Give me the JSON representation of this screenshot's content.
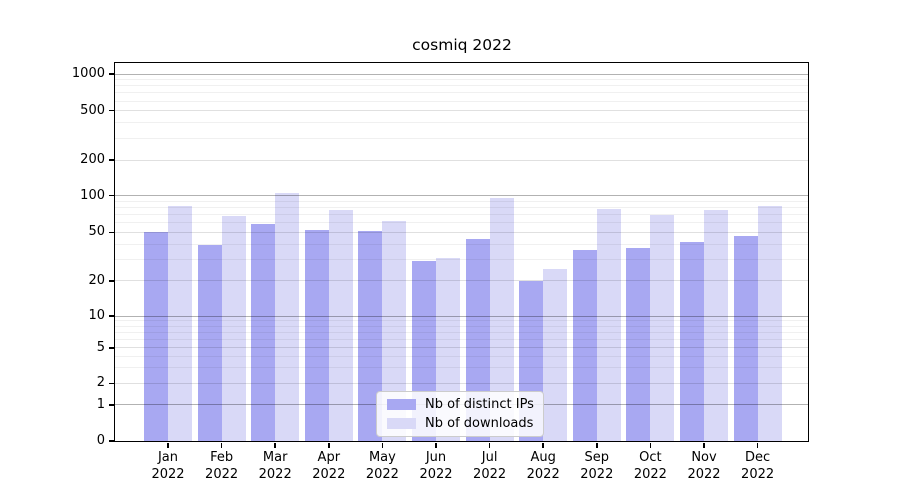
{
  "title": "cosmiq 2022",
  "colors": {
    "bar_ips": "#a8a8f2",
    "bar_downloads": "#d9d9f7",
    "grid_major": "rgba(0,0,0,0.30)",
    "grid_mid": "rgba(0,0,0,0.12)",
    "grid_minor": "rgba(0,0,0,0.06)",
    "spine": "#000000",
    "legend_border": "#cccccc"
  },
  "chart_data": {
    "type": "bar",
    "title": "cosmiq 2022",
    "categories": [
      "Jan",
      "Feb",
      "Mar",
      "Apr",
      "May",
      "Jun",
      "Jul",
      "Aug",
      "Sep",
      "Oct",
      "Nov",
      "Dec"
    ],
    "category_year": "2022",
    "series": [
      {
        "name": "Nb of distinct IPs",
        "color": "#a8a8f2",
        "values": [
          50,
          39,
          59,
          52,
          51,
          29,
          44,
          20,
          36,
          37,
          42,
          47
        ]
      },
      {
        "name": "Nb of downloads",
        "color": "#d9d9f7",
        "values": [
          83,
          68,
          105,
          77,
          62,
          31,
          95,
          25,
          78,
          69,
          76,
          83
        ]
      }
    ],
    "xlabel": "",
    "ylabel": "",
    "yscale": "symlog",
    "ylim": [
      0,
      1240
    ],
    "yticks": [
      0,
      1,
      2,
      5,
      10,
      20,
      50,
      100,
      200,
      500,
      1000
    ],
    "grid": "both",
    "gridlines": {
      "major": [
        1,
        10,
        100,
        1000
      ],
      "mid": [
        2,
        5,
        20,
        50,
        200,
        500
      ],
      "minor": [
        3,
        4,
        6,
        7,
        8,
        9,
        30,
        40,
        60,
        70,
        80,
        90,
        300,
        400,
        600,
        700,
        800,
        900
      ]
    },
    "legend_position": "lower center"
  }
}
